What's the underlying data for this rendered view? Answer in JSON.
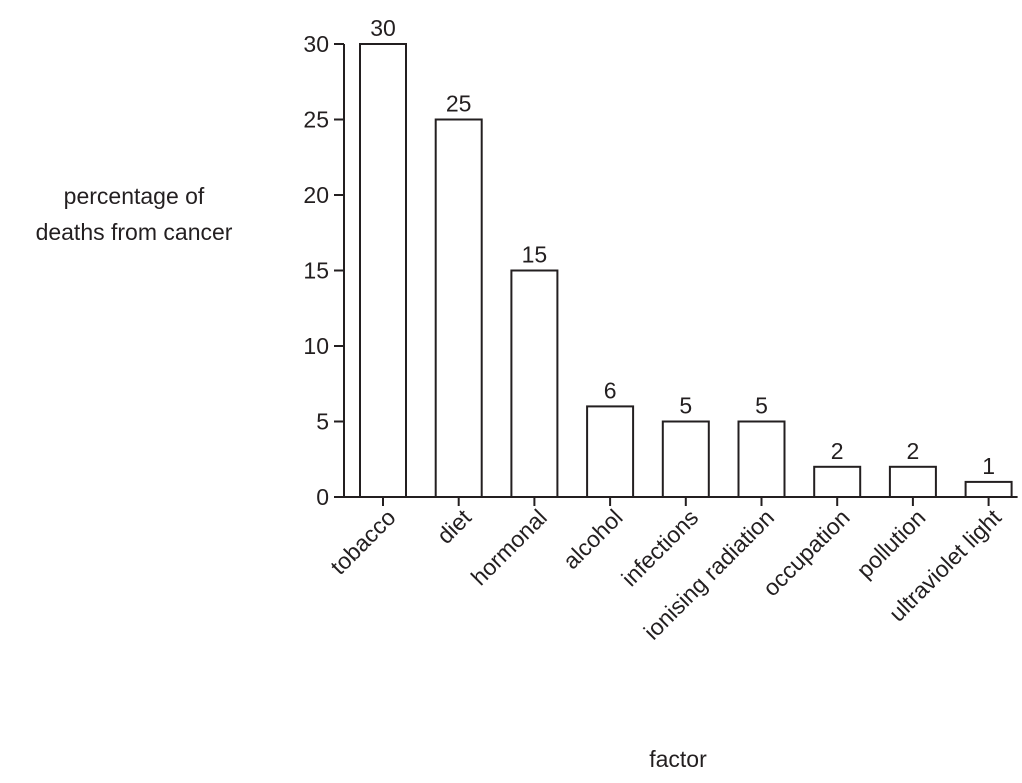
{
  "chart_data": {
    "type": "bar",
    "categories": [
      "tobacco",
      "diet",
      "hormonal",
      "alcohol",
      "infections",
      "ionising radiation",
      "occupation",
      "pollution",
      "ultraviolet light"
    ],
    "values": [
      30,
      25,
      15,
      6,
      5,
      5,
      2,
      2,
      1
    ],
    "data_labels": [
      "30",
      "25",
      "15",
      "6",
      "5",
      "5",
      "2",
      "2",
      "1"
    ],
    "ylabel_lines": [
      "percentage of",
      "deaths from cancer"
    ],
    "xlabel": "factor",
    "ylim": [
      0,
      30
    ],
    "yticks": [
      0,
      5,
      10,
      15,
      20,
      25,
      30
    ],
    "grid": false,
    "legend": "none",
    "colors": {
      "bar_fill": "#ffffff",
      "stroke": "#231f20"
    }
  }
}
